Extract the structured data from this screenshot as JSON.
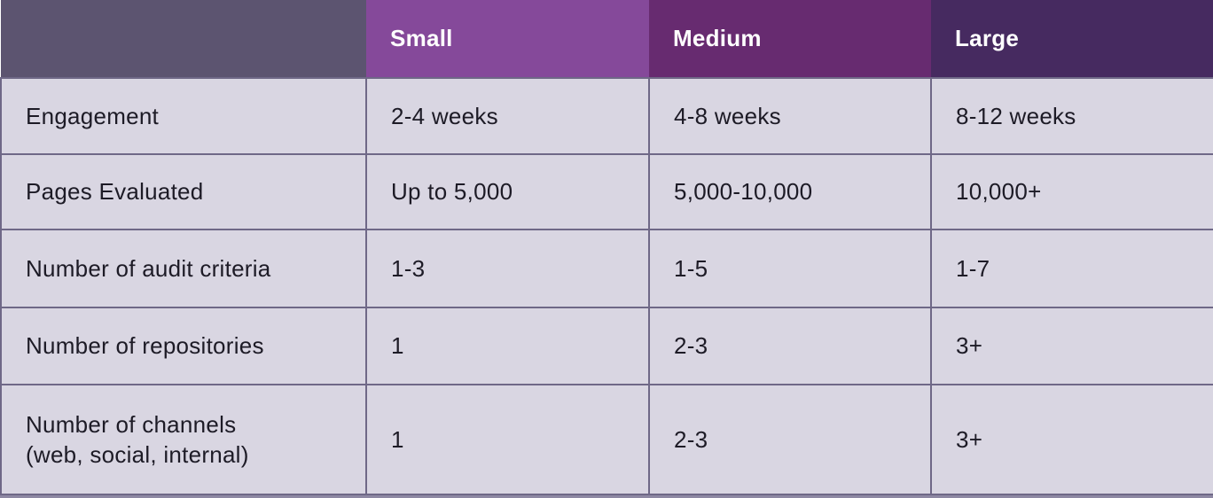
{
  "table": {
    "header": {
      "corner": "",
      "columns": [
        "Small",
        "Medium",
        "Large"
      ]
    },
    "rows": [
      {
        "label": "Engagement",
        "values": [
          "2-4 weeks",
          "4-8 weeks",
          "8-12 weeks"
        ]
      },
      {
        "label": "Pages Evaluated",
        "values": [
          "Up to 5,000",
          "5,000-10,000",
          "10,000+"
        ]
      },
      {
        "label": "Number of audit criteria",
        "values": [
          "1-3",
          "1-5",
          "1-7"
        ]
      },
      {
        "label": "Number of repositories",
        "values": [
          "1",
          "2-3",
          "3+"
        ]
      },
      {
        "label": "Number of channels\n(web, social, internal)",
        "values": [
          "1",
          "2-3",
          "3+"
        ]
      }
    ],
    "colors": {
      "corner_header_bg": "#5c5470",
      "small_header_bg": "#85499a",
      "medium_header_bg": "#672b70",
      "large_header_bg": "#462a60",
      "body_cell_bg": "#d9d6e2",
      "border": "#6f6887",
      "header_text": "#ffffff",
      "body_text": "#1d1b26"
    }
  }
}
